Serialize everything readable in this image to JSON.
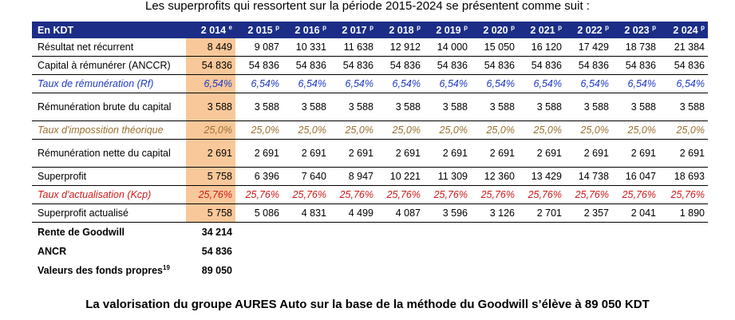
{
  "intro": "Les superprofits qui ressortent sur la période 2015-2024 se présentent comme suit :",
  "header": {
    "label": "En KDT",
    "years": [
      {
        "y": "2 014",
        "s": "e"
      },
      {
        "y": "2 015",
        "s": "p"
      },
      {
        "y": "2 016",
        "s": "p"
      },
      {
        "y": "2 017",
        "s": "p"
      },
      {
        "y": "2 018",
        "s": "p"
      },
      {
        "y": "2 019",
        "s": "p"
      },
      {
        "y": "2 020",
        "s": "p"
      },
      {
        "y": "2 021",
        "s": "p"
      },
      {
        "y": "2 022",
        "s": "p"
      },
      {
        "y": "2 023",
        "s": "p"
      },
      {
        "y": "2 024",
        "s": "p"
      }
    ]
  },
  "rows": [
    {
      "label": "Résultat net récurrent",
      "values": [
        "8 449",
        "9 087",
        "10 331",
        "11 638",
        "12 912",
        "14 000",
        "15 050",
        "16 120",
        "17 429",
        "18 738",
        "21 384"
      ]
    },
    {
      "label": "Capital à rémunérer (ANCCR)",
      "values": [
        "54 836",
        "54 836",
        "54 836",
        "54 836",
        "54 836",
        "54 836",
        "54 836",
        "54 836",
        "54 836",
        "54 836",
        "54 836"
      ]
    },
    {
      "label": "Taux de rémunération (Rf)",
      "values": [
        "6,54%",
        "6,54%",
        "6,54%",
        "6,54%",
        "6,54%",
        "6,54%",
        "6,54%",
        "6,54%",
        "6,54%",
        "6,54%",
        "6,54%"
      ]
    },
    {
      "label": "Rémunération brute du capital",
      "values": [
        "3 588",
        "3 588",
        "3 588",
        "3 588",
        "3 588",
        "3 588",
        "3 588",
        "3 588",
        "3 588",
        "3 588",
        "3 588"
      ]
    },
    {
      "label": "Taux d'impossition théorique",
      "values": [
        "25,0%",
        "25,0%",
        "25,0%",
        "25,0%",
        "25,0%",
        "25,0%",
        "25,0%",
        "25,0%",
        "25,0%",
        "25,0%",
        "25,0%"
      ]
    },
    {
      "label": "Rémunération nette du capital",
      "values": [
        "2 691",
        "2 691",
        "2 691",
        "2 691",
        "2 691",
        "2 691",
        "2 691",
        "2 691",
        "2 691",
        "2 691",
        "2 691"
      ]
    },
    {
      "label": "Superprofit",
      "values": [
        "5 758",
        "6 396",
        "7 640",
        "8 947",
        "10 221",
        "11 309",
        "12 360",
        "13 429",
        "14 738",
        "16 047",
        "18 693"
      ]
    },
    {
      "label": "Taux d'actualisation (Kcp)",
      "values": [
        "25,76%",
        "25,76%",
        "25,76%",
        "25,76%",
        "25,76%",
        "25,76%",
        "25,76%",
        "25,76%",
        "25,76%",
        "25,76%",
        "25,76%"
      ]
    },
    {
      "label": "Superprofit actualisé",
      "values": [
        "5 758",
        "5 086",
        "4 831",
        "4 499",
        "4 087",
        "3 596",
        "3 126",
        "2 701",
        "2 357",
        "2 041",
        "1 890"
      ]
    }
  ],
  "summary": [
    {
      "label": "Rente de Goodwill",
      "value": "34 214"
    },
    {
      "label": "ANCR",
      "value": "54 836"
    },
    {
      "label": "Valeurs des fonds propres",
      "sup": "19",
      "value": "89 050"
    }
  ],
  "conclusion": "La valorisation du groupe AURES Auto sur la base de la méthode du Goodwill s’élève à 89 050 KDT"
}
